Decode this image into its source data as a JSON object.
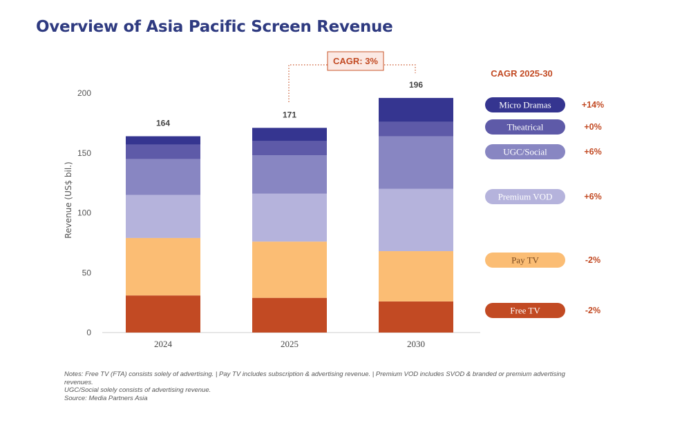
{
  "title": "Overview of Asia Pacific Screen Revenue",
  "chart_data": {
    "type": "bar",
    "stacked": true,
    "categories": [
      "2024",
      "2025",
      "2030"
    ],
    "totals": [
      "164",
      "171",
      "196"
    ],
    "ylabel": "Revenue (US$ bil.)",
    "ylim": [
      0,
      200
    ],
    "yticks": [
      0,
      50,
      100,
      150,
      200
    ],
    "series": [
      {
        "name": "Free TV",
        "color": "#c24a23",
        "values": [
          31,
          29,
          26
        ]
      },
      {
        "name": "Pay TV",
        "color": "#fbbd74",
        "values": [
          48,
          47,
          42
        ]
      },
      {
        "name": "Premium VOD",
        "color": "#b5b3dc",
        "values": [
          36,
          40,
          52
        ]
      },
      {
        "name": "UGC/Social",
        "color": "#8886c2",
        "values": [
          30,
          32,
          44
        ]
      },
      {
        "name": "Theatrical",
        "color": "#5e5aa8",
        "values": [
          12,
          12,
          12
        ]
      },
      {
        "name": "Micro Dramas",
        "color": "#353590",
        "values": [
          7,
          11,
          20
        ]
      }
    ],
    "cagr_label": "CAGR: 3%",
    "legend_title": "CAGR 2025-30",
    "legend": [
      {
        "name": "Micro Dramas",
        "cagr": "+14%",
        "color": "#353590",
        "text_color": "#ffffff"
      },
      {
        "name": "Theatrical",
        "cagr": "+0%",
        "color": "#5e5aa8",
        "text_color": "#ffffff"
      },
      {
        "name": "UGC/Social",
        "cagr": "+6%",
        "color": "#8886c2",
        "text_color": "#ffffff"
      },
      {
        "name": "Premium VOD",
        "cagr": "+6%",
        "color": "#b5b3dc",
        "text_color": "#ffffff"
      },
      {
        "name": "Pay TV",
        "cagr": "-2%",
        "color": "#fbbd74",
        "text_color": "#7a4a20"
      },
      {
        "name": "Free TV",
        "cagr": "-2%",
        "color": "#c24a23",
        "text_color": "#ffffff"
      }
    ]
  },
  "notes": {
    "line1": "Notes: Free TV (FTA) consists solely of advertising. | Pay TV includes subscription & advertising revenue. | Premium VOD includes SVOD & branded or premium advertising revenues.",
    "line2": "UGC/Social solely consists of advertising revenue.",
    "line3": "Source: Media Partners Asia"
  }
}
